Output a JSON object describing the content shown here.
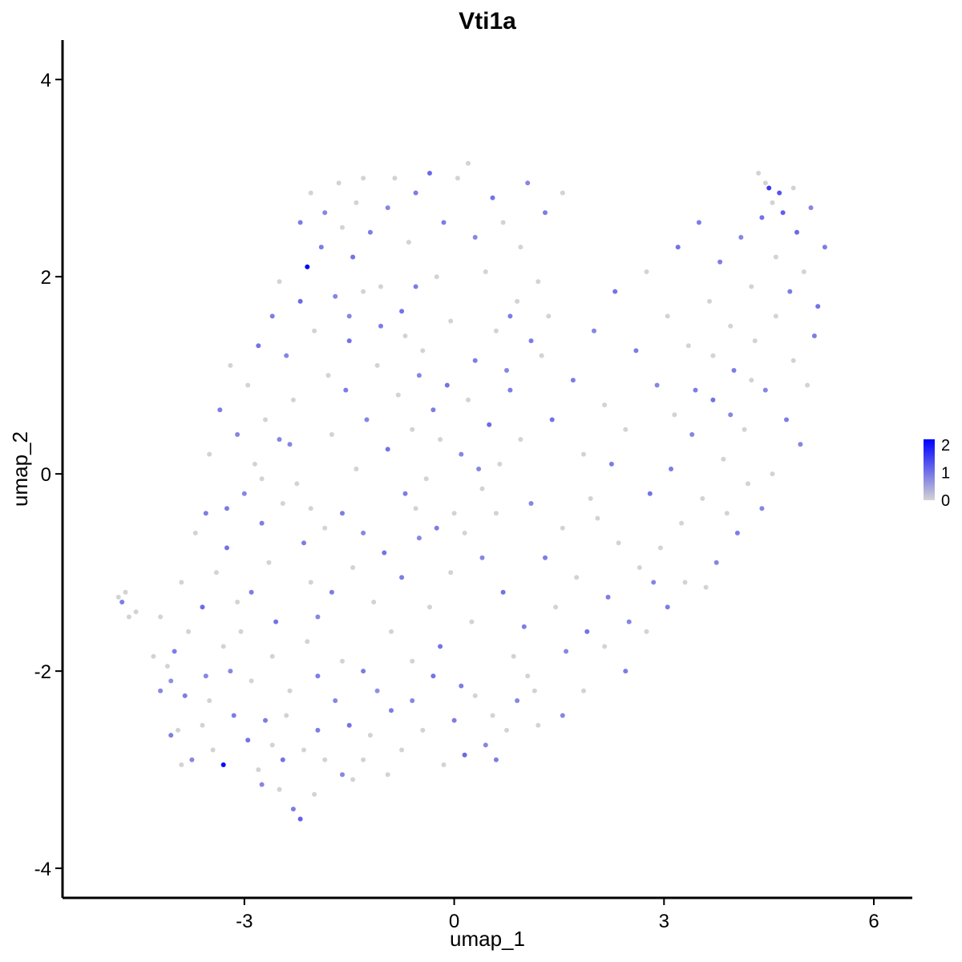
{
  "chart_data": {
    "type": "scatter",
    "title": "Vti1a",
    "xlabel": "umap_1",
    "ylabel": "umap_2",
    "xlim": [
      -5.6,
      6.55
    ],
    "ylim": [
      -4.3,
      4.4
    ],
    "x_ticks": [
      -3,
      0,
      3,
      6
    ],
    "y_ticks": [
      -4,
      -2,
      0,
      2,
      4
    ],
    "x_tick_labels": [
      "-3",
      "0",
      "3",
      "6"
    ],
    "y_tick_labels": [
      "-4",
      "-2",
      "0",
      "2",
      "4"
    ],
    "grid": false,
    "legend": {
      "placement": "right",
      "type": "colorbar",
      "min": 0,
      "max": 2.2,
      "ticks": [
        0,
        1,
        2
      ],
      "tick_labels": [
        "0",
        "1",
        "2"
      ],
      "color_low": "#d3d3d3",
      "color_high": "#0000ff"
    },
    "points": [
      [
        -4.8,
        -1.25,
        0
      ],
      [
        -4.7,
        -1.2,
        0
      ],
      [
        -4.75,
        -1.3,
        0.9
      ],
      [
        -4.65,
        -1.45,
        0
      ],
      [
        -4.55,
        -1.4,
        0
      ],
      [
        -4.3,
        -1.85,
        0
      ],
      [
        -4.2,
        -2.2,
        0.8
      ],
      [
        -4.1,
        -1.95,
        0
      ],
      [
        -4.05,
        -2.1,
        0.7
      ],
      [
        -3.95,
        -2.6,
        0
      ],
      [
        -3.85,
        -2.25,
        0.9
      ],
      [
        -3.8,
        -1.6,
        0
      ],
      [
        -3.75,
        -2.9,
        0.8
      ],
      [
        -3.6,
        -1.35,
        1.1
      ],
      [
        -3.5,
        -2.3,
        0
      ],
      [
        -3.45,
        -2.8,
        0
      ],
      [
        -3.3,
        -2.95,
        2.1
      ],
      [
        -3.2,
        -2.0,
        0.8
      ],
      [
        -3.05,
        -1.6,
        0
      ],
      [
        -2.95,
        -2.7,
        1.0
      ],
      [
        -2.9,
        -1.2,
        0.9
      ],
      [
        -2.8,
        -3.0,
        0
      ],
      [
        -2.7,
        -2.5,
        0.9
      ],
      [
        -2.6,
        -1.85,
        0
      ],
      [
        -2.5,
        -3.2,
        0
      ],
      [
        -2.45,
        -2.9,
        1.0
      ],
      [
        -2.35,
        -2.2,
        0
      ],
      [
        -2.3,
        -3.4,
        0.9
      ],
      [
        -2.2,
        -3.5,
        1.2
      ],
      [
        -2.1,
        -1.7,
        0
      ],
      [
        -2.0,
        -3.25,
        0
      ],
      [
        -1.95,
        -2.6,
        0.9
      ],
      [
        -1.85,
        -2.9,
        0
      ],
      [
        -1.7,
        -2.3,
        0.8
      ],
      [
        -1.6,
        -1.9,
        0
      ],
      [
        -1.5,
        -2.55,
        1.0
      ],
      [
        -1.45,
        -3.1,
        0
      ],
      [
        -1.3,
        -2.0,
        0.9
      ],
      [
        -1.2,
        -2.65,
        0
      ],
      [
        -1.1,
        -2.2,
        0.7
      ],
      [
        -4.2,
        -1.45,
        0
      ],
      [
        -4.0,
        -1.8,
        0.9
      ],
      [
        -3.9,
        -1.1,
        0
      ],
      [
        -3.7,
        -0.6,
        0
      ],
      [
        -3.55,
        -0.4,
        0.9
      ],
      [
        -3.4,
        -1.0,
        0
      ],
      [
        -3.25,
        -0.75,
        1.0
      ],
      [
        -3.1,
        -1.3,
        0
      ],
      [
        -3.0,
        -0.2,
        0.8
      ],
      [
        -2.85,
        0.1,
        0
      ],
      [
        -2.75,
        -0.5,
        0.9
      ],
      [
        -2.65,
        -0.9,
        0
      ],
      [
        -2.55,
        -1.5,
        1.0
      ],
      [
        -2.45,
        -0.3,
        0
      ],
      [
        -2.35,
        0.3,
        0.8
      ],
      [
        -2.25,
        -0.1,
        0
      ],
      [
        -2.15,
        -0.7,
        0.9
      ],
      [
        -2.05,
        -1.1,
        0
      ],
      [
        -1.95,
        -1.45,
        0.8
      ],
      [
        -1.85,
        -0.55,
        0
      ],
      [
        -3.5,
        0.2,
        0
      ],
      [
        -3.35,
        0.65,
        0.9
      ],
      [
        -3.2,
        1.1,
        0
      ],
      [
        -3.1,
        0.4,
        0.8
      ],
      [
        -2.95,
        0.9,
        0
      ],
      [
        -2.8,
        1.3,
        1.0
      ],
      [
        -2.7,
        0.55,
        0
      ],
      [
        -2.6,
        1.6,
        0.9
      ],
      [
        -2.5,
        1.95,
        0
      ],
      [
        -2.4,
        1.2,
        0.8
      ],
      [
        -2.3,
        0.75,
        0
      ],
      [
        -2.2,
        1.75,
        1.1
      ],
      [
        -2.1,
        2.1,
        2.3
      ],
      [
        -2.0,
        1.45,
        0
      ],
      [
        -1.9,
        2.3,
        0.9
      ],
      [
        -1.8,
        1.0,
        0
      ],
      [
        -1.7,
        1.8,
        0.8
      ],
      [
        -1.6,
        2.5,
        0
      ],
      [
        -1.5,
        1.35,
        1.0
      ],
      [
        -1.4,
        2.75,
        0
      ],
      [
        -2.2,
        2.55,
        0.9
      ],
      [
        -2.05,
        2.85,
        0
      ],
      [
        -1.85,
        2.65,
        0.8
      ],
      [
        -1.65,
        2.95,
        0
      ],
      [
        -1.45,
        2.2,
        1.0
      ],
      [
        -1.3,
        3.0,
        0
      ],
      [
        -1.2,
        2.45,
        0.9
      ],
      [
        -1.05,
        1.9,
        0
      ],
      [
        -0.95,
        2.7,
        0.8
      ],
      [
        -0.85,
        3.0,
        0
      ],
      [
        -0.75,
        1.65,
        1.0
      ],
      [
        -0.65,
        2.35,
        0
      ],
      [
        -0.55,
        2.85,
        0.9
      ],
      [
        -0.45,
        1.25,
        0
      ],
      [
        -0.35,
        3.05,
        1.1
      ],
      [
        -0.25,
        2.0,
        0
      ],
      [
        -0.15,
        2.55,
        0.9
      ],
      [
        -0.05,
        1.55,
        0
      ],
      [
        0.05,
        3.0,
        0
      ],
      [
        0.2,
        3.15,
        0
      ],
      [
        0.3,
        2.4,
        0.8
      ],
      [
        0.45,
        2.05,
        0
      ],
      [
        0.55,
        2.8,
        1.0
      ],
      [
        0.7,
        2.55,
        0
      ],
      [
        0.8,
        1.6,
        0.9
      ],
      [
        0.95,
        2.3,
        0
      ],
      [
        1.05,
        2.95,
        0.8
      ],
      [
        1.2,
        1.95,
        0
      ],
      [
        1.3,
        2.65,
        0.9
      ],
      [
        1.55,
        2.85,
        0
      ],
      [
        -1.75,
        0.4,
        0
      ],
      [
        -1.55,
        0.85,
        0.9
      ],
      [
        -1.4,
        0.05,
        0
      ],
      [
        -1.25,
        0.55,
        0.8
      ],
      [
        -1.1,
        1.1,
        0
      ],
      [
        -0.95,
        0.25,
        1.0
      ],
      [
        -0.8,
        0.8,
        0
      ],
      [
        -0.7,
        -0.2,
        0.9
      ],
      [
        -0.6,
        0.45,
        0
      ],
      [
        -0.5,
        1.0,
        0.8
      ],
      [
        -0.4,
        -0.05,
        0
      ],
      [
        -0.3,
        0.65,
        0.9
      ],
      [
        -0.2,
        0.35,
        0
      ],
      [
        -0.1,
        0.9,
        1.0
      ],
      [
        0.0,
        -0.4,
        0
      ],
      [
        0.1,
        0.2,
        0.8
      ],
      [
        0.2,
        0.75,
        0
      ],
      [
        0.3,
        1.15,
        0.9
      ],
      [
        0.4,
        -0.15,
        0
      ],
      [
        0.5,
        0.5,
        1.1
      ],
      [
        -1.6,
        -0.4,
        0.9
      ],
      [
        -1.45,
        -0.95,
        0
      ],
      [
        -1.3,
        -0.6,
        0.8
      ],
      [
        -1.15,
        -1.3,
        0
      ],
      [
        -1.0,
        -0.8,
        1.0
      ],
      [
        -0.9,
        -1.6,
        0
      ],
      [
        -0.75,
        -1.05,
        0.9
      ],
      [
        -0.6,
        -1.9,
        0
      ],
      [
        -0.5,
        -0.65,
        0.8
      ],
      [
        -0.35,
        -1.35,
        0
      ],
      [
        -0.2,
        -1.75,
        1.0
      ],
      [
        -0.05,
        -1.0,
        0
      ],
      [
        0.1,
        -2.15,
        0.9
      ],
      [
        0.25,
        -1.5,
        0
      ],
      [
        0.4,
        -0.85,
        0.8
      ],
      [
        0.55,
        -2.45,
        0
      ],
      [
        0.7,
        -1.2,
        1.0
      ],
      [
        0.85,
        -1.85,
        0
      ],
      [
        1.0,
        -1.55,
        0.9
      ],
      [
        1.15,
        -2.2,
        0
      ],
      [
        -0.9,
        -2.4,
        0.9
      ],
      [
        -0.75,
        -2.8,
        0
      ],
      [
        -0.6,
        -2.3,
        0.8
      ],
      [
        -0.45,
        -2.6,
        0
      ],
      [
        -0.3,
        -2.05,
        1.0
      ],
      [
        -0.15,
        -2.95,
        0
      ],
      [
        0.0,
        -2.5,
        0.9
      ],
      [
        0.15,
        -2.85,
        1.1
      ],
      [
        0.3,
        -2.25,
        0
      ],
      [
        0.45,
        -2.75,
        0.8
      ],
      [
        0.6,
        -2.9,
        0.9
      ],
      [
        0.75,
        -2.6,
        0
      ],
      [
        0.9,
        -2.3,
        0.8
      ],
      [
        1.05,
        -2.05,
        0
      ],
      [
        1.2,
        -2.55,
        0
      ],
      [
        0.65,
        0.1,
        0
      ],
      [
        0.8,
        0.85,
        0.9
      ],
      [
        0.95,
        0.35,
        0
      ],
      [
        1.1,
        -0.3,
        0.8
      ],
      [
        1.25,
        1.2,
        0
      ],
      [
        1.4,
        0.55,
        1.0
      ],
      [
        1.55,
        -0.55,
        0
      ],
      [
        1.7,
        0.95,
        0.9
      ],
      [
        1.85,
        0.2,
        0
      ],
      [
        2.0,
        1.45,
        0.8
      ],
      [
        2.15,
        0.7,
        0
      ],
      [
        2.3,
        1.85,
        1.0
      ],
      [
        2.45,
        0.45,
        0
      ],
      [
        2.6,
        1.25,
        0.9
      ],
      [
        2.75,
        2.05,
        0
      ],
      [
        2.9,
        0.9,
        0.8
      ],
      [
        3.05,
        1.6,
        0
      ],
      [
        3.2,
        2.3,
        1.0
      ],
      [
        3.35,
        1.3,
        0
      ],
      [
        3.5,
        2.55,
        0.9
      ],
      [
        1.3,
        -0.85,
        0.9
      ],
      [
        1.45,
        -1.35,
        0
      ],
      [
        1.6,
        -1.8,
        0.8
      ],
      [
        1.75,
        -1.05,
        0
      ],
      [
        1.9,
        -1.6,
        1.0
      ],
      [
        2.05,
        -0.45,
        0
      ],
      [
        2.2,
        -1.25,
        0.9
      ],
      [
        2.35,
        -0.7,
        0
      ],
      [
        2.5,
        -1.5,
        0.8
      ],
      [
        2.65,
        -0.95,
        0
      ],
      [
        2.8,
        -0.2,
        1.0
      ],
      [
        2.95,
        -0.75,
        0
      ],
      [
        3.1,
        0.05,
        0.9
      ],
      [
        3.25,
        -0.5,
        0
      ],
      [
        3.4,
        0.4,
        0.8
      ],
      [
        3.55,
        -0.25,
        0
      ],
      [
        3.7,
        0.75,
        1.0
      ],
      [
        3.85,
        0.15,
        0
      ],
      [
        4.0,
        1.05,
        0.9
      ],
      [
        4.15,
        0.45,
        0
      ],
      [
        3.65,
        1.75,
        0
      ],
      [
        3.8,
        2.15,
        0.9
      ],
      [
        3.95,
        1.5,
        0
      ],
      [
        4.1,
        2.4,
        0.8
      ],
      [
        4.25,
        1.9,
        0
      ],
      [
        4.4,
        2.6,
        1.0
      ],
      [
        4.5,
        2.9,
        1.6
      ],
      [
        4.6,
        2.2,
        0
      ],
      [
        4.7,
        2.65,
        1.2
      ],
      [
        4.8,
        1.85,
        0.9
      ],
      [
        4.9,
        2.45,
        1.1
      ],
      [
        5.0,
        2.05,
        0
      ],
      [
        5.1,
        2.7,
        0.8
      ],
      [
        5.2,
        1.7,
        1.0
      ],
      [
        5.3,
        2.3,
        0.9
      ],
      [
        4.3,
        1.35,
        0
      ],
      [
        4.45,
        0.85,
        0.8
      ],
      [
        4.6,
        1.6,
        0
      ],
      [
        4.75,
        0.55,
        0.9
      ],
      [
        4.85,
        1.15,
        0
      ],
      [
        4.95,
        0.3,
        0.8
      ],
      [
        5.05,
        0.9,
        0
      ],
      [
        5.15,
        1.4,
        0.9
      ],
      [
        4.55,
        0.0,
        0
      ],
      [
        4.4,
        -0.35,
        0.8
      ],
      [
        4.2,
        -0.1,
        0
      ],
      [
        4.05,
        -0.6,
        0.9
      ],
      [
        3.9,
        -0.4,
        0
      ],
      [
        3.75,
        -0.9,
        0.8
      ],
      [
        3.6,
        -1.15,
        0
      ],
      [
        4.45,
        2.95,
        0
      ],
      [
        4.35,
        3.05,
        0
      ],
      [
        4.55,
        2.75,
        0
      ],
      [
        4.65,
        2.85,
        1.3
      ],
      [
        4.85,
        2.9,
        0
      ],
      [
        -0.55,
        -0.35,
        0
      ],
      [
        -0.25,
        -0.55,
        0.9
      ],
      [
        0.15,
        -0.6,
        0
      ],
      [
        0.35,
        0.05,
        0.8
      ],
      [
        0.6,
        -0.4,
        0
      ],
      [
        -2.9,
        -2.1,
        0
      ],
      [
        -3.15,
        -2.45,
        0.9
      ],
      [
        -2.6,
        -2.75,
        0
      ],
      [
        -2.75,
        -3.15,
        0.8
      ],
      [
        -3.6,
        -2.55,
        0
      ],
      [
        -3.9,
        -2.95,
        0
      ],
      [
        -4.05,
        -2.65,
        0.9
      ],
      [
        -3.3,
        -1.75,
        0
      ],
      [
        -3.55,
        -2.05,
        0.8
      ],
      [
        -2.4,
        -2.45,
        0
      ],
      [
        -1.95,
        -2.05,
        0.9
      ],
      [
        -2.15,
        -2.8,
        0
      ],
      [
        -1.6,
        -3.05,
        0.8
      ],
      [
        -1.3,
        -2.9,
        0
      ],
      [
        -0.95,
        -3.05,
        0
      ],
      [
        -1.75,
        -1.2,
        0.9
      ],
      [
        -2.05,
        -0.35,
        0
      ],
      [
        -2.5,
        0.35,
        0.8
      ],
      [
        -2.75,
        -0.05,
        0
      ],
      [
        -3.25,
        -0.35,
        0.9
      ],
      [
        0.6,
        1.45,
        0
      ],
      [
        0.75,
        1.05,
        0.8
      ],
      [
        0.9,
        1.75,
        0
      ],
      [
        1.1,
        1.35,
        0.9
      ],
      [
        1.35,
        1.6,
        0
      ],
      [
        -1.05,
        1.5,
        0.9
      ],
      [
        -1.3,
        1.85,
        0
      ],
      [
        -1.5,
        1.6,
        0.8
      ],
      [
        -0.7,
        1.4,
        0
      ],
      [
        -0.55,
        1.9,
        0.9
      ],
      [
        2.15,
        -1.75,
        0
      ],
      [
        2.45,
        -2.0,
        0.9
      ],
      [
        1.85,
        -2.2,
        0
      ],
      [
        1.55,
        -2.45,
        0.8
      ],
      [
        2.75,
        -1.6,
        0
      ],
      [
        3.05,
        -1.35,
        0.9
      ],
      [
        3.3,
        -1.1,
        0
      ],
      [
        2.85,
        -1.1,
        0.8
      ],
      [
        1.95,
        -0.25,
        0
      ],
      [
        2.25,
        0.1,
        0.9
      ],
      [
        3.7,
        1.2,
        0
      ],
      [
        3.95,
        0.6,
        0.8
      ],
      [
        4.25,
        0.95,
        0
      ],
      [
        3.45,
        0.85,
        0.9
      ],
      [
        3.15,
        0.6,
        0
      ]
    ]
  }
}
